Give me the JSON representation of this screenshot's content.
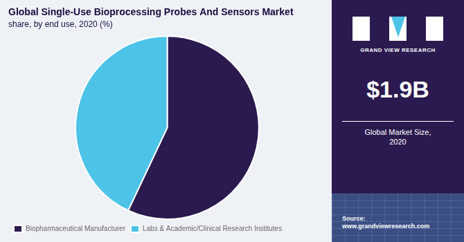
{
  "chart_data": {
    "type": "pie",
    "title": "Global Single-Use Bioprocessing Probes And Sensors Market",
    "subtitle": "share, by end use, 2020 (%)",
    "categories": [
      "Biopharmaceutical Manufacturer",
      "Labs & Academic/Clinical Research Institutes"
    ],
    "values": [
      57,
      43
    ],
    "colors": [
      "#2b1a4f",
      "#4dc3e8"
    ],
    "legend": "lower left",
    "annotations": [
      "GRAND VIEW RESEARCH",
      "$1.9B",
      "Global Market Size,\n2020",
      "Source:\nwww.grandviewresearch.com"
    ]
  }
}
